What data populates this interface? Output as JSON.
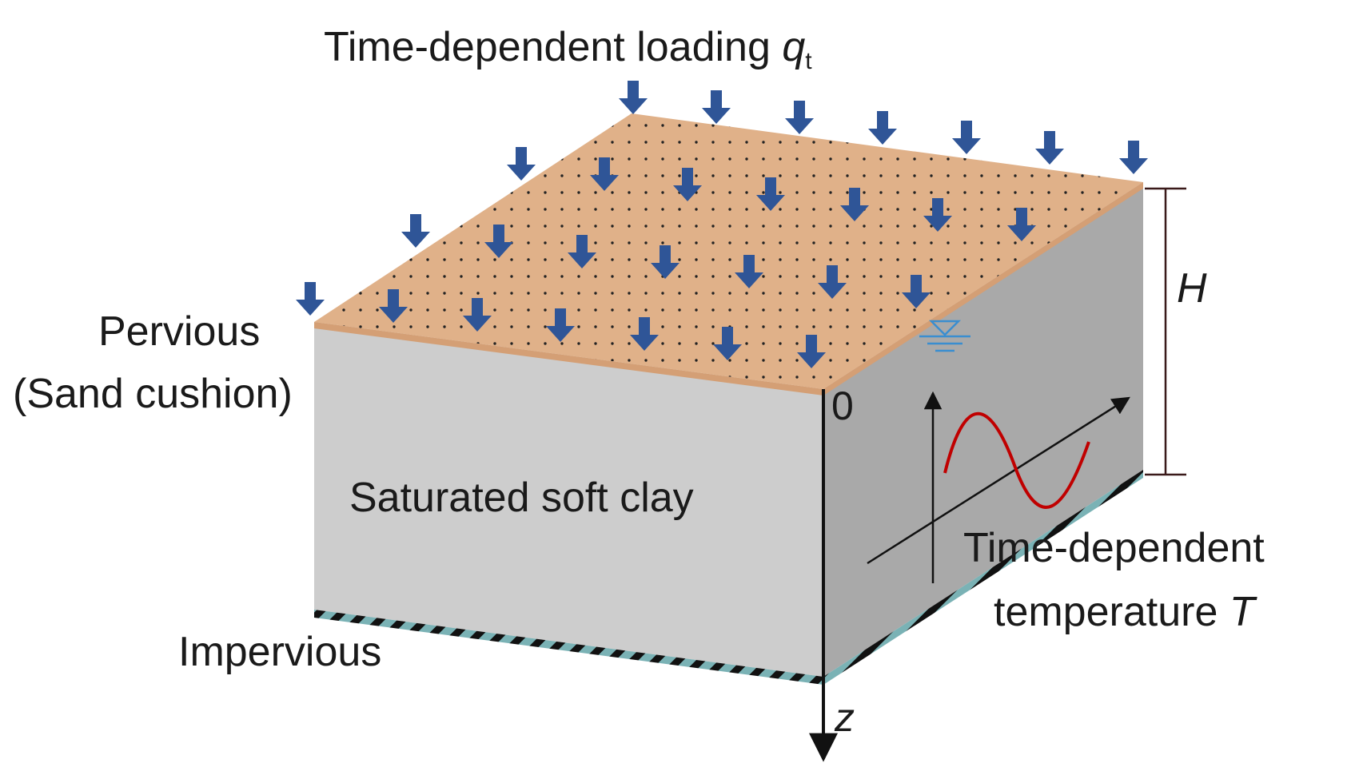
{
  "labels": {
    "loading_prefix": "Time-dependent loading ",
    "loading_symbol": "q",
    "loading_subscript": "t",
    "pervious_line1": "Pervious",
    "pervious_line2": "(Sand cushion)",
    "clay": "Saturated soft clay",
    "impervious": "Impervious",
    "height_symbol": "H",
    "origin": "0",
    "depth_axis": "z",
    "temperature_line1": "Time-dependent",
    "temperature_line2_prefix": "temperature ",
    "temperature_symbol": "T"
  },
  "colors": {
    "sand_top": "#e0b189",
    "sand_edge": "#d49f75",
    "clay_front": "#cdcdcd",
    "clay_side": "#a9a9a9",
    "load_arrow": "#2f5597",
    "impervious_stripe": "#7ab2b5",
    "temperature_wave": "#c00000",
    "water_table": "#3a8ed0"
  },
  "icons": {
    "load_arrows": "down-arrow-icon",
    "water_table": "water-table-icon"
  }
}
